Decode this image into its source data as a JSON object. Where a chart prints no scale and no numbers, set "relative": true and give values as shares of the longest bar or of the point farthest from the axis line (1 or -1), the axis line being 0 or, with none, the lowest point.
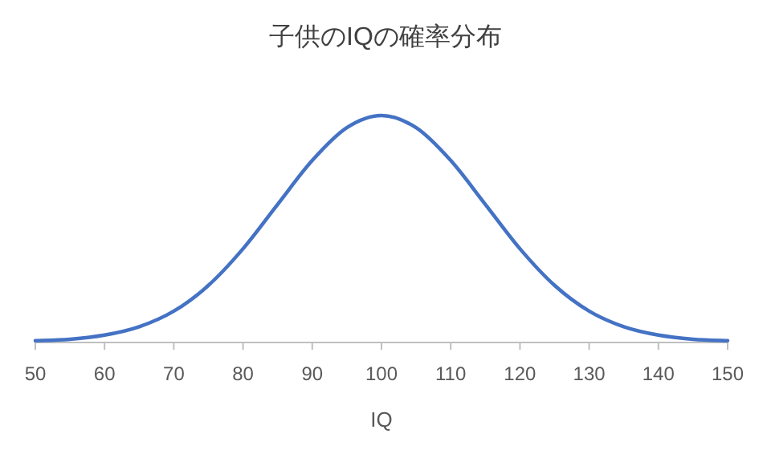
{
  "chart_data": {
    "type": "line",
    "title": "子供のIQの確率分布",
    "xlabel": "IQ",
    "relative": true,
    "xlim": [
      50,
      150
    ],
    "xticks": [
      50,
      60,
      70,
      80,
      90,
      100,
      110,
      120,
      130,
      140,
      150
    ],
    "x": [
      50,
      55,
      60,
      65,
      70,
      75,
      80,
      85,
      90,
      95,
      100,
      105,
      110,
      115,
      120,
      125,
      130,
      135,
      140,
      145,
      150
    ],
    "series": [
      {
        "color": "#4472c4",
        "values": [
          0.004,
          0.011,
          0.029,
          0.066,
          0.135,
          0.249,
          0.411,
          0.607,
          0.801,
          0.946,
          1,
          0.946,
          0.801,
          0.607,
          0.411,
          0.249,
          0.135,
          0.066,
          0.029,
          0.011,
          0.004
        ]
      }
    ]
  }
}
